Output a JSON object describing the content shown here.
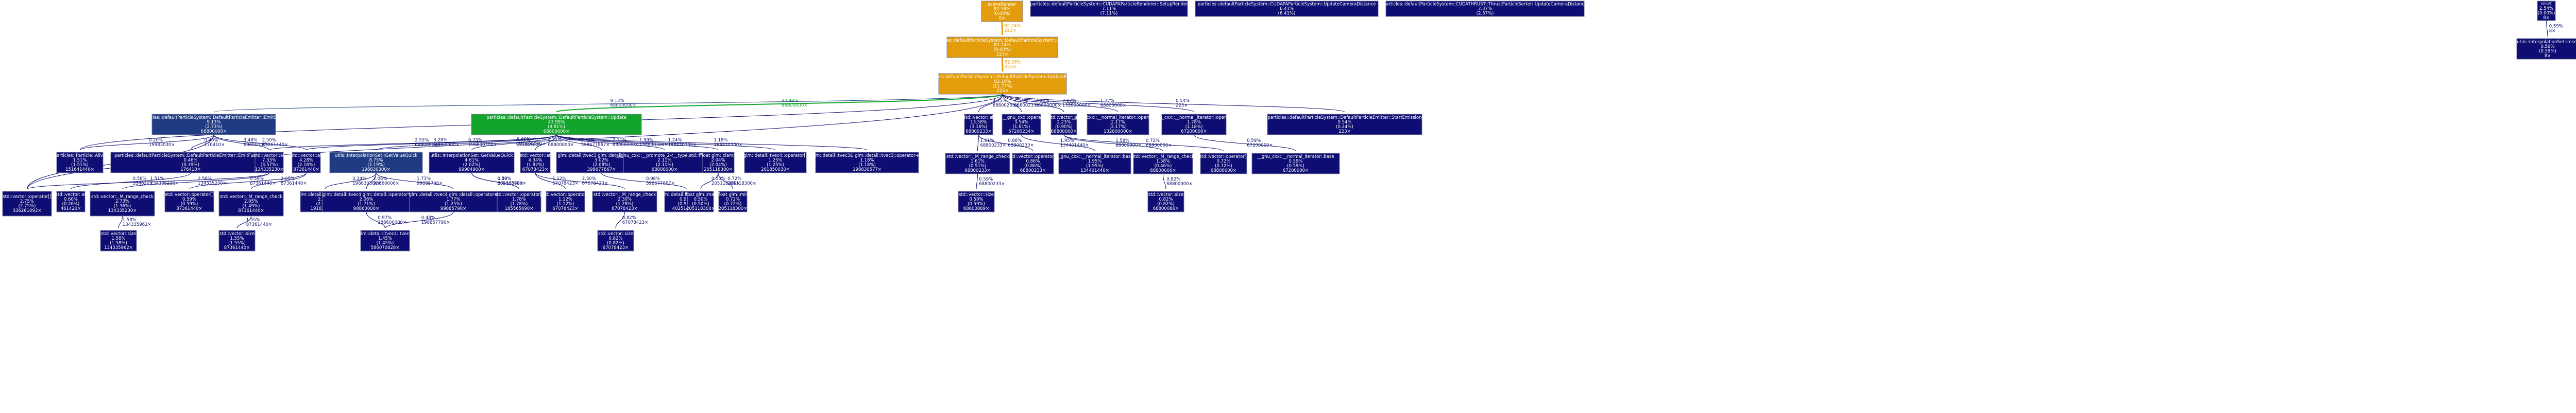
{
  "colors": {
    "hot": "#e49d0a",
    "warm": "#1f3b83",
    "green": "#13a52b",
    "cool": "#0d0d73",
    "text_light": "#ffffff",
    "edge_default": "#2a2a7f"
  },
  "nodes": [
    {
      "id": "n_sceneRender",
      "lines": [
        "sceneRender",
        "82.56%",
        "(0.00%)",
        "0×"
      ],
      "color": "#e49d0a"
    },
    {
      "id": "n_setupRender",
      "lines": [
        "particles::defaultParticleSystem::CUDAPAParticleRenderer::SetupRender",
        "7.11%",
        "(7.11%)"
      ],
      "color": "#0d0d73"
    },
    {
      "id": "n_updateCameraDistance",
      "lines": [
        "particles::defaultParticleSystem::CUDAPAParticleSystem::UpdateCameraDistance",
        "6.41%",
        "(6.41%)"
      ],
      "color": "#0d0d73"
    },
    {
      "id": "n_thrustSorter",
      "lines": [
        "particles::defaultParticleSystem::CUDATHRUST::ThrustParticleSorter::UpdateCameraDistance",
        "2.37%",
        "(2.37%)"
      ],
      "color": "#0d0d73"
    },
    {
      "id": "n_reset",
      "lines": [
        "reset",
        "2.54%",
        "(0.00%)",
        "8×"
      ],
      "color": "#0d0d73"
    },
    {
      "id": "n_interpReset",
      "lines": [
        "utils::InterpolationSet::reset",
        "0.59%",
        "(0.59%)",
        "8×"
      ],
      "color": "#0d0d73"
    },
    {
      "id": "n_systemUpdate",
      "lines": [
        "particles::defaultParticleSystem::DefaultParticleSystem::Update",
        "82.24%",
        "(0.00%)",
        "223×"
      ],
      "color": "#e49d0a"
    },
    {
      "id": "n_updateEmitted",
      "lines": [
        "particles::defaultParticleSystem::DefaultParticleSystem::UpdateEmitted",
        "82.16%",
        "(11.77%)",
        "223×"
      ],
      "color": "#e49d0a"
    },
    {
      "id": "n_emitSingle",
      "lines": [
        "particles::defaultParticleSystem::DefaultParticleEmitter::EmitSingle",
        "9.13%",
        "(2.73%)",
        "68800000×"
      ],
      "color": "#1f3b83"
    },
    {
      "id": "n_particleUpdate",
      "lines": [
        "particles::defaultParticleSystem::DefaultParticleSystem::Update",
        "43.99%",
        "(9.81%)",
        "68800000×"
      ],
      "color": "#13a52b"
    },
    {
      "id": "n_vecAt1",
      "lines": [
        "std::vector::at",
        "13.58%",
        "(3.16%)",
        "68800233×"
      ],
      "color": "#0d0d73"
    },
    {
      "id": "n_boolOp",
      "lines": [
        "bool __gnu_cxx::operator<",
        "3.54%",
        "(1.61%)",
        "67200234×"
      ],
      "color": "#0d0d73"
    },
    {
      "id": "n_vecAt2",
      "lines": [
        "std::vector::at",
        "2.23%",
        "(0.90%)",
        "68800000×"
      ],
      "color": "#0d0d73"
    },
    {
      "id": "n_normIterPP",
      "lines": [
        "__gnu_cxx::__normal_iterator::operator++",
        "2.17%",
        "(2.17%)",
        "132800000×"
      ],
      "color": "#0d0d73"
    },
    {
      "id": "n_normIterPlus",
      "lines": [
        "__gnu_cxx::__normal_iterator::operator+",
        "1.78%",
        "(1.18%)",
        "67200000×"
      ],
      "color": "#0d0d73"
    },
    {
      "id": "n_startEmission",
      "lines": [
        "particles::defaultParticleSystem::DefaultParticleEmitter::StartEmission",
        "0.54%",
        "(0.24%)",
        "223×"
      ],
      "color": "#0d0d73"
    },
    {
      "id": "n_particleAlive",
      "lines": [
        "particles::Particle::Alive",
        "1.51%",
        "(1.51%)",
        "151641440×"
      ],
      "color": "#0d0d73"
    },
    {
      "id": "n_emitFunction",
      "lines": [
        "particles::defaultParticleSystem::DefaultParticleEmitter::EmitFunction",
        "0.46%",
        "(0.39%)",
        "176410×"
      ],
      "color": "#0d0d73"
    },
    {
      "id": "n_vecAt3",
      "lines": [
        "std::vector::at",
        "7.33%",
        "(3.57%)",
        "134335230×"
      ],
      "color": "#0d0d73"
    },
    {
      "id": "n_vecAt4",
      "lines": [
        "std::vector::at",
        "4.28%",
        "(2.16%)",
        "87361440×"
      ],
      "color": "#0d0d73"
    },
    {
      "id": "n_getValueQuick1",
      "lines": [
        "utils::InterpolationSet::GetValueQuick",
        "8.75%",
        "(2.19%)",
        "198830300×"
      ],
      "color": "#1f3b83"
    },
    {
      "id": "n_getValueQuick2",
      "lines": [
        "utils::InterpolationSet::GetValueQuick",
        "4.61%",
        "(2.02%)",
        "99984900×"
      ],
      "color": "#0d0d73"
    },
    {
      "id": "n_vecAt5",
      "lines": [
        "std::vector::at",
        "4.34%",
        "(1.82%)",
        "67078423×"
      ],
      "color": "#0d0d73"
    },
    {
      "id": "n_glmVec3Op",
      "lines": [
        "glm::detail::tvec3 glm::detail::operator*",
        "3.02%",
        "(2.08%)",
        "398677867×"
      ],
      "color": "#0d0d73"
    },
    {
      "id": "n_primalts",
      "lines": [
        "__gnu_cxx::__promote_2<__type,std::float...",
        "2.11%",
        "(2.11%)",
        "68800000×"
      ],
      "color": "#0d0d73"
    },
    {
      "id": "n_glmClamp",
      "lines": [
        "float glm::clamp",
        "2.04%",
        "(2.04%)",
        "205118300×"
      ],
      "color": "#0d0d73"
    },
    {
      "id": "n_glmTvec4",
      "lines": [
        "glm::detail::tvec4::operator[]",
        "1.25%",
        "(1.25%)",
        "201850030×"
      ],
      "color": "#0d0d73"
    },
    {
      "id": "n_glmTvec3B",
      "lines": [
        "glm::detail::tvec3& glm::detail::tvec3::operator+=",
        "1.18%",
        "(1.18%)",
        "198830577×"
      ],
      "color": "#0d0d73"
    },
    {
      "id": "n_vecRange1",
      "lines": [
        "std::vector::_M_range_check",
        "1.61%",
        "(0.51%)",
        "68800233×"
      ],
      "color": "#0d0d73"
    },
    {
      "id": "n_vecOpIdx1",
      "lines": [
        "std::vector::operator[]",
        "0.86%",
        "(0.86%)",
        "68800233×"
      ],
      "color": "#0d0d73"
    },
    {
      "id": "n_normIterBase1",
      "lines": [
        "__gnu_cxx::__normal_iterator::base",
        "1.95%",
        "(1.95%)",
        "134401440×"
      ],
      "color": "#0d0d73"
    },
    {
      "id": "n_vecRange2",
      "lines": [
        "std::vector::_M_range_check",
        "1.58%",
        "(0.46%)",
        "68800000×"
      ],
      "color": "#0d0d73"
    },
    {
      "id": "n_vecOpIdx2",
      "lines": [
        "std::vector::operator[]",
        "0.72%",
        "(0.72%)",
        "68800000×"
      ],
      "color": "#0d0d73"
    },
    {
      "id": "n_normIterBase2",
      "lines": [
        "__gnu_cxx::__normal_iterator::base",
        "0.59%",
        "(0.59%)",
        "67200000×"
      ],
      "color": "#0d0d73"
    },
    {
      "id": "n_vecSize1",
      "lines": [
        "std::vector::size",
        "0.59%",
        "(0.59%)",
        "68800889×"
      ],
      "color": "#0d0d73"
    },
    {
      "id": "n_vecSize2",
      "lines": [
        "std::vector::size",
        "0.82%",
        "(0.82%)",
        "68800066×"
      ],
      "color": "#0d0d73"
    },
    {
      "id": "n_vecOpIdx3",
      "lines": [
        "std::vector::operator[]",
        "2.75%",
        "(2.75%)",
        "336261093×"
      ],
      "color": "#0d0d73"
    },
    {
      "id": "n_vecAt6",
      "lines": [
        "std::vector::at",
        "0.60%",
        "(0.26%)",
        "461420×"
      ],
      "color": "#0d0d73"
    },
    {
      "id": "n_vecRange3",
      "lines": [
        "std::vector::_M_range_check",
        "2.73%",
        "(1.36%)",
        "134335230×"
      ],
      "color": "#0d0d73"
    },
    {
      "id": "n_vecOpIdx4",
      "lines": [
        "std::vector::operator[]",
        "0.59%",
        "(0.59%)",
        "87361440×"
      ],
      "color": "#0d0d73"
    },
    {
      "id": "n_vecRange4",
      "lines": [
        "std::vector::_M_range_check",
        "2.05%",
        "(1.49%)",
        "87361440×"
      ],
      "color": "#0d0d73"
    },
    {
      "id": "n_glmTvec4B",
      "lines": [
        "glm::detail::tvec4::tvec4",
        "2.35%",
        "(2.05%)",
        "191819238×"
      ],
      "color": "#0d0d73"
    },
    {
      "id": "n_glmTvec4Op",
      "lines": [
        "glm::detail::tvec4 glm::detail::operator*",
        "2.06%",
        "(1.71%)",
        "98860000×"
      ],
      "color": "#0d0d73"
    },
    {
      "id": "n_glmTvec4Op2",
      "lines": [
        "glm::detail::tvec4 glm::detail::operator+",
        "1.77%",
        "(1.25%)",
        "99885790×"
      ],
      "color": "#0d0d73"
    },
    {
      "id": "n_vecOpIdx5",
      "lines": [
        "std::vector::operator[]",
        "1.78%",
        "(1.78%)",
        "185565690×"
      ],
      "color": "#0d0d73"
    },
    {
      "id": "n_vecOpIdx6",
      "lines": [
        "std::vector::operator[]",
        "1.12%",
        "(1.12%)",
        "67078423×"
      ],
      "color": "#0d0d73"
    },
    {
      "id": "n_vecRange5",
      "lines": [
        "std::vector::_M_range_check",
        "2.30%",
        "(1.28%)",
        "67078423×"
      ],
      "color": "#0d0d73"
    },
    {
      "id": "n_glmTvec3C",
      "lines": [
        "glm::detail::tvec3::tvec3",
        "0.99%",
        "(0.99%)",
        "402514926×"
      ],
      "color": "#0d0d73"
    },
    {
      "id": "n_glmMax",
      "lines": [
        "float glm::max",
        "0.50%",
        "(0.50%)",
        "205118300×"
      ],
      "color": "#0d0d73"
    },
    {
      "id": "n_glmMin",
      "lines": [
        "float glm::min",
        "0.72%",
        "(0.72%)",
        "205118300×"
      ],
      "color": "#0d0d73"
    },
    {
      "id": "n_vecSize3",
      "lines": [
        "std::vector::size",
        "1.58%",
        "(1.58%)",
        "134335962×"
      ],
      "color": "#0d0d73"
    },
    {
      "id": "n_vecSize4",
      "lines": [
        "std::vector::size",
        "1.55%",
        "(1.55%)",
        "87361440×"
      ],
      "color": "#0d0d73"
    },
    {
      "id": "n_glmTvec4C",
      "lines": [
        "glm::detail::tvec4::tvec4",
        "1.45%",
        "(1.45%)",
        "586070828×"
      ],
      "color": "#0d0d73"
    },
    {
      "id": "n_vecSize5",
      "lines": [
        "std::vector::size",
        "0.82%",
        "(0.82%)",
        "67078423×"
      ],
      "color": "#0d0d73"
    }
  ],
  "edges": [
    {
      "from": "n_sceneRender",
      "to": "n_systemUpdate",
      "label": [
        "82.24%",
        "223×"
      ],
      "color": "#e49d0a"
    },
    {
      "from": "n_reset",
      "to": "n_interpReset",
      "label": [
        "0.59%",
        "8×"
      ],
      "color": "#0d0d73"
    },
    {
      "from": "n_systemUpdate",
      "to": "n_updateEmitted",
      "label": [
        "82.16%",
        "223×"
      ],
      "color": "#e49d0a"
    },
    {
      "from": "n_updateEmitted",
      "to": "n_particleUpdate",
      "label": [
        "43.99%",
        "68800000×"
      ],
      "color": "#13a52b"
    },
    {
      "from": "n_updateEmitted",
      "to": "n_emitSingle",
      "label": [
        "9.13%",
        "68800000×"
      ],
      "color": "#1f3b83"
    },
    {
      "from": "n_updateEmitted",
      "to": "n_vecAt1",
      "label": [
        "4.15%",
        "68800233×"
      ],
      "color": "#0d0d73"
    },
    {
      "from": "n_updateEmitted",
      "to": "n_boolOp",
      "label": [
        "3.54%",
        "68800233×"
      ],
      "color": "#0d0d73"
    },
    {
      "from": "n_updateEmitted",
      "to": "n_vecAt2",
      "label": [
        "2.23%",
        "68800000×"
      ],
      "color": "#0d0d73"
    },
    {
      "from": "n_updateEmitted",
      "to": "n_normIterPP",
      "label": [
        "2.17%",
        "132800000×"
      ],
      "color": "#0d0d73"
    },
    {
      "from": "n_updateEmitted",
      "to": "n_normIterPlus",
      "label": [
        "1.77%",
        "68800000×"
      ],
      "color": "#0d0d73"
    },
    {
      "from": "n_updateEmitted",
      "to": "n_startEmission",
      "label": [
        "0.54%",
        "223×"
      ],
      "color": "#0d0d73"
    },
    {
      "from": "n_updateEmitted",
      "to": "n_particleAlive",
      "label": [
        "0.66%",
        "68800000×"
      ],
      "color": "#0d0d73"
    },
    {
      "from": "n_updateEmitted",
      "to": "n_vecOpIdx3",
      "label": [
        "1.49%",
        "131800000×"
      ],
      "color": "#0d0d73"
    },
    {
      "from": "n_emitSingle",
      "to": "n_particleAlive",
      "label": [
        "0.20%",
        "19983030×"
      ],
      "color": "#0d0d73"
    },
    {
      "from": "n_emitSingle",
      "to": "n_emitFunction",
      "label": [
        "0.46%",
        "176410×"
      ],
      "color": "#0d0d73"
    },
    {
      "from": "n_emitSingle",
      "to": "n_vecAt3",
      "label": [
        "3.48%",
        "68800000×"
      ],
      "color": "#0d0d73"
    },
    {
      "from": "n_emitSingle",
      "to": "n_vecAt4",
      "label": [
        "2.50%",
        "87361440×"
      ],
      "color": "#0d0d73"
    },
    {
      "from": "n_emitSingle",
      "to": "n_vecOpIdx3",
      "label": [
        "0.75%",
        "68800000×"
      ],
      "color": "#0d0d73"
    },
    {
      "from": "n_particleUpdate",
      "to": "n_getValueQuick1",
      "label": [
        "6.75%",
        "198830300×"
      ],
      "color": "#0d0d73"
    },
    {
      "from": "n_particleUpdate",
      "to": "n_getValueQuick2",
      "label": [
        "4.61%",
        "99984900×"
      ],
      "color": "#0d0d73"
    },
    {
      "from": "n_particleUpdate",
      "to": "n_vecAt5",
      "label": [
        "4.33%",
        "68800000×"
      ],
      "color": "#0d0d73"
    },
    {
      "from": "n_particleUpdate",
      "to": "n_glmVec3Op",
      "label": [
        "3.02%",
        "398677867×"
      ],
      "color": "#0d0d73"
    },
    {
      "from": "n_particleUpdate",
      "to": "n_primalts",
      "label": [
        "2.11%",
        "68800000×"
      ],
      "color": "#0d0d73"
    },
    {
      "from": "n_particleUpdate",
      "to": "n_glmClamp",
      "label": [
        "1.99%",
        "198830300×"
      ],
      "color": "#0d0d73"
    },
    {
      "from": "n_particleUpdate",
      "to": "n_glmTvec4",
      "label": [
        "1.24%",
        "198830300×"
      ],
      "color": "#0d0d73"
    },
    {
      "from": "n_particleUpdate",
      "to": "n_glmTvec3B",
      "label": [
        "1.18%",
        "198830300×"
      ],
      "color": "#0d0d73"
    },
    {
      "from": "n_particleUpdate",
      "to": "n_vecAt3",
      "label": [
        "2.55%",
        "68800000×"
      ],
      "color": "#0d0d73"
    },
    {
      "from": "n_particleUpdate",
      "to": "n_vecAt4",
      "label": [
        "3.28%",
        "68800000×"
      ],
      "color": "#0d0d73"
    },
    {
      "from": "n_vecAt1",
      "to": "n_vecRange1",
      "label": [
        "1.61%",
        "68800233×"
      ],
      "color": "#0d0d73"
    },
    {
      "from": "n_vecAt1",
      "to": "n_vecOpIdx1",
      "label": [
        "0.86%",
        "68800233×"
      ],
      "color": "#0d0d73"
    },
    {
      "from": "n_boolOp",
      "to": "n_normIterBase1",
      "label": [
        "1.95%",
        "134401440×"
      ],
      "color": "#0d0d73"
    },
    {
      "from": "n_vecAt2",
      "to": "n_vecRange2",
      "label": [
        "1.58%",
        "68800000×"
      ],
      "color": "#0d0d73"
    },
    {
      "from": "n_vecAt2",
      "to": "n_vecOpIdx2",
      "label": [
        "0.72%",
        "68800000×"
      ],
      "color": "#0d0d73"
    },
    {
      "from": "n_normIterPlus",
      "to": "n_normIterBase2",
      "label": [
        "0.59%",
        "67200000×"
      ],
      "color": "#0d0d73"
    },
    {
      "from": "n_vecRange1",
      "to": "n_vecSize1",
      "label": [
        "0.59%",
        "68800233×"
      ],
      "color": "#0d0d73"
    },
    {
      "from": "n_vecRange2",
      "to": "n_vecSize2",
      "label": [
        "0.82%",
        "68800000×"
      ],
      "color": "#0d0d73"
    },
    {
      "from": "n_emitFunction",
      "to": "n_vecAt6",
      "label": [
        "0.58%",
        "354620×"
      ],
      "color": "#0d0d73"
    },
    {
      "from": "n_vecAt3",
      "to": "n_vecRange3",
      "label": [
        "2.56%",
        "134335230×"
      ],
      "color": "#0d0d73"
    },
    {
      "from": "n_vecAt3",
      "to": "n_vecOpIdx3",
      "label": [
        "1.51%",
        "134335230×"
      ],
      "color": "#0d0d73"
    },
    {
      "from": "n_vecAt4",
      "to": "n_vecRange4",
      "label": [
        "2.05%",
        "87361440×"
      ],
      "color": "#0d0d73"
    },
    {
      "from": "n_vecAt4",
      "to": "n_vecOpIdx4",
      "label": [
        "0.59%",
        "87361440×"
      ],
      "color": "#0d0d73"
    },
    {
      "from": "n_getValueQuick1",
      "to": "n_glmTvec4B",
      "label": [
        "2.34%",
        "198830300×"
      ],
      "color": "#0d0d73"
    },
    {
      "from": "n_getValueQuick1",
      "to": "n_glmTvec4Op",
      "label": [
        "2.06%",
        "98860000×"
      ],
      "color": "#0d0d73"
    },
    {
      "from": "n_getValueQuick1",
      "to": "n_glmTvec4Op2",
      "label": [
        "1.73%",
        "99885790×"
      ],
      "color": "#0d0d73"
    },
    {
      "from": "n_getValueQuick2",
      "to": "n_vecOpIdx5",
      "label": [
        "0.50%",
        "80510878×"
      ],
      "color": "#0d0d73"
    },
    {
      "from": "n_getValueQuick2",
      "to": "n_vecOpIdx5",
      "label": [
        "1.28%",
        "185565690×"
      ],
      "color": "#0d0d73"
    },
    {
      "from": "n_vecAt5",
      "to": "n_vecOpIdx6",
      "label": [
        "1.12%",
        "67078423×"
      ],
      "color": "#0d0d73"
    },
    {
      "from": "n_vecAt5",
      "to": "n_vecRange5",
      "label": [
        "2.30%",
        "67078423×"
      ],
      "color": "#0d0d73"
    },
    {
      "from": "n_glmVec3Op",
      "to": "n_glmTvec3C",
      "label": [
        "0.98%",
        "398677867×"
      ],
      "color": "#0d0d73"
    },
    {
      "from": "n_glmClamp",
      "to": "n_glmMax",
      "label": [
        "0.50%",
        "205118300×"
      ],
      "color": "#0d0d73"
    },
    {
      "from": "n_glmClamp",
      "to": "n_glmMin",
      "label": [
        "0.72%",
        "205118300×"
      ],
      "color": "#0d0d73"
    },
    {
      "from": "n_vecRange3",
      "to": "n_vecSize3",
      "label": [
        "1.58%",
        "134335962×"
      ],
      "color": "#0d0d73"
    },
    {
      "from": "n_vecRange4",
      "to": "n_vecSize4",
      "label": [
        "1.55%",
        "87361440×"
      ],
      "color": "#0d0d73"
    },
    {
      "from": "n_glmTvec4Op",
      "to": "n_glmTvec4C",
      "label": [
        "0.97%",
        "388600000×"
      ],
      "color": "#0d0d73"
    },
    {
      "from": "n_glmTvec4Op2",
      "to": "n_glmTvec4C",
      "label": [
        "0.48%",
        "198857790×"
      ],
      "color": "#0d0d73"
    },
    {
      "from": "n_vecRange5",
      "to": "n_vecSize5",
      "label": [
        "0.82%",
        "67078423×"
      ],
      "color": "#0d0d73"
    }
  ]
}
